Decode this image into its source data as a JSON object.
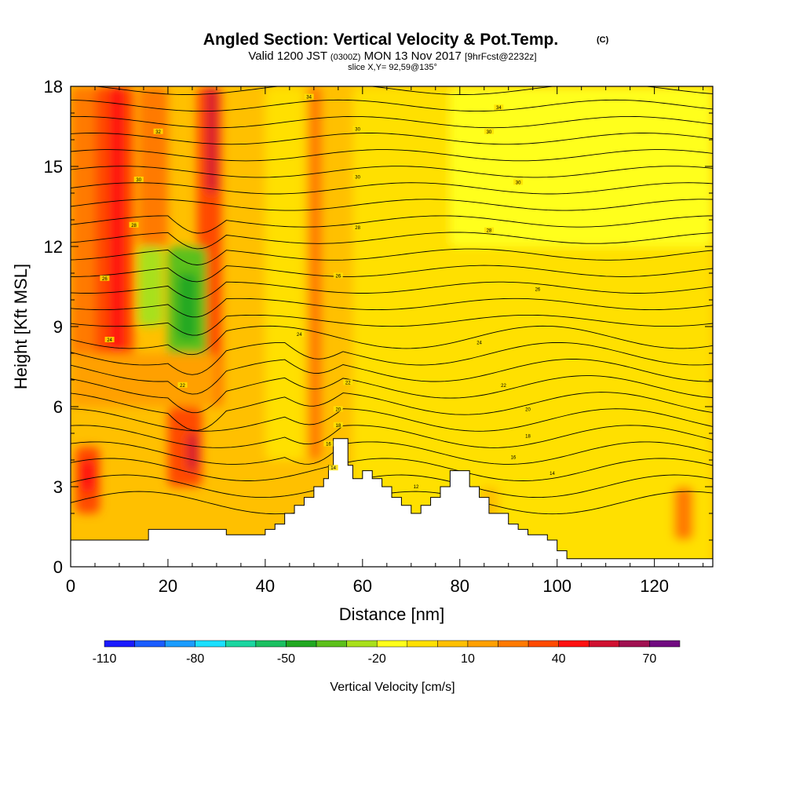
{
  "chart_data": {
    "type": "heatmap",
    "title": "Angled Section: Vertical Velocity & Pot.Temp.",
    "title_mark": "(C)",
    "subtitle_parts": [
      "Valid 1200 JST",
      "(0300Z)",
      "MON 13 Nov 2017",
      "[9hrFcst@2232z]"
    ],
    "slice_label": "slice X,Y= 92,59@135°",
    "xlabel": "Distance [nm]",
    "ylabel": "Height [Kft MSL]",
    "xlim": [
      0,
      132
    ],
    "ylim": [
      0,
      18
    ],
    "x_ticks": [
      0,
      20,
      40,
      60,
      80,
      100,
      120
    ],
    "y_ticks": [
      0,
      3,
      6,
      9,
      12,
      15,
      18
    ],
    "colorbar": {
      "label": "Vertical Velocity [cm/s]",
      "tick_labels": [
        "-110",
        "-80",
        "-50",
        "-20",
        "10",
        "40",
        "70"
      ],
      "colors": [
        "#1a1aff",
        "#1a5cff",
        "#1a9cff",
        "#1ae0ff",
        "#1ad6a0",
        "#1ac060",
        "#20a820",
        "#5cc01a",
        "#a8e01a",
        "#ffff1a",
        "#ffe000",
        "#ffc000",
        "#ffa000",
        "#ff7a00",
        "#ff4a00",
        "#ff1010",
        "#d01030",
        "#a01050",
        "#700a80"
      ]
    },
    "terrain_top_kft": [
      1.0,
      1.0,
      1.0,
      1.0,
      1.4,
      1.4,
      1.4,
      1.4,
      1.2,
      1.2,
      1.4,
      1.6,
      2.0,
      2.3,
      2.6,
      3.0,
      3.3,
      3.8,
      4.8,
      4.8,
      3.8,
      3.3,
      3.6,
      3.3,
      3.0,
      2.6,
      2.3,
      2.0,
      2.3,
      2.6,
      3.0,
      3.6,
      3.6,
      3.0,
      2.6,
      2.0,
      2.0,
      1.6,
      1.4,
      1.2,
      1.0,
      0.6,
      0.3,
      0.3,
      0.3,
      0.3
    ],
    "terrain_top_x": [
      0,
      5,
      10,
      14,
      16,
      20,
      24,
      28,
      32,
      36,
      40,
      42,
      44,
      46,
      48,
      50,
      52,
      53,
      54,
      56,
      57,
      58,
      60,
      62,
      64,
      66,
      68,
      70,
      72,
      74,
      76,
      78,
      80,
      82,
      84,
      86,
      88,
      90,
      92,
      94,
      98,
      100,
      102,
      104,
      106,
      132
    ],
    "theta_contours": [
      {
        "label": "34",
        "y": 17.6,
        "label_x": 49
      },
      {
        "label": "34",
        "y": 17.2,
        "label_x": 88
      },
      {
        "label": "32",
        "y": 16.3,
        "label_x": 18
      },
      {
        "label": "30",
        "y": 16.4,
        "label_x": 59
      },
      {
        "label": "30",
        "y": 16.3,
        "label_x": 86
      },
      {
        "label": "30",
        "y": 14.5,
        "label_x": 14
      },
      {
        "label": "30",
        "y": 14.6,
        "label_x": 59
      },
      {
        "label": "30",
        "y": 14.4,
        "label_x": 92
      },
      {
        "label": "28",
        "y": 12.8,
        "label_x": 13
      },
      {
        "label": "28",
        "y": 12.7,
        "label_x": 59
      },
      {
        "label": "28",
        "y": 12.6,
        "label_x": 86
      },
      {
        "label": "26",
        "y": 10.8,
        "label_x": 7
      },
      {
        "label": "26",
        "y": 10.9,
        "label_x": 55
      },
      {
        "label": "26",
        "y": 10.4,
        "label_x": 96
      },
      {
        "label": "24",
        "y": 8.5,
        "label_x": 8
      },
      {
        "label": "24",
        "y": 8.7,
        "label_x": 47
      },
      {
        "label": "24",
        "y": 8.4,
        "label_x": 84
      },
      {
        "label": "22",
        "y": 6.8,
        "label_x": 23
      },
      {
        "label": "22",
        "y": 6.9,
        "label_x": 57
      },
      {
        "label": "22",
        "y": 6.8,
        "label_x": 89
      },
      {
        "label": "20",
        "y": 5.9,
        "label_x": 55
      },
      {
        "label": "20",
        "y": 5.9,
        "label_x": 94
      },
      {
        "label": "18",
        "y": 5.3,
        "label_x": 55
      },
      {
        "label": "18",
        "y": 4.9,
        "label_x": 94
      },
      {
        "label": "16",
        "y": 4.6,
        "label_x": 53
      },
      {
        "label": "16",
        "y": 4.1,
        "label_x": 91
      },
      {
        "label": "14",
        "y": 3.7,
        "label_x": 54
      },
      {
        "label": "14",
        "y": 3.5,
        "label_x": 99
      },
      {
        "label": "12",
        "y": 3.0,
        "label_x": 71
      }
    ]
  }
}
